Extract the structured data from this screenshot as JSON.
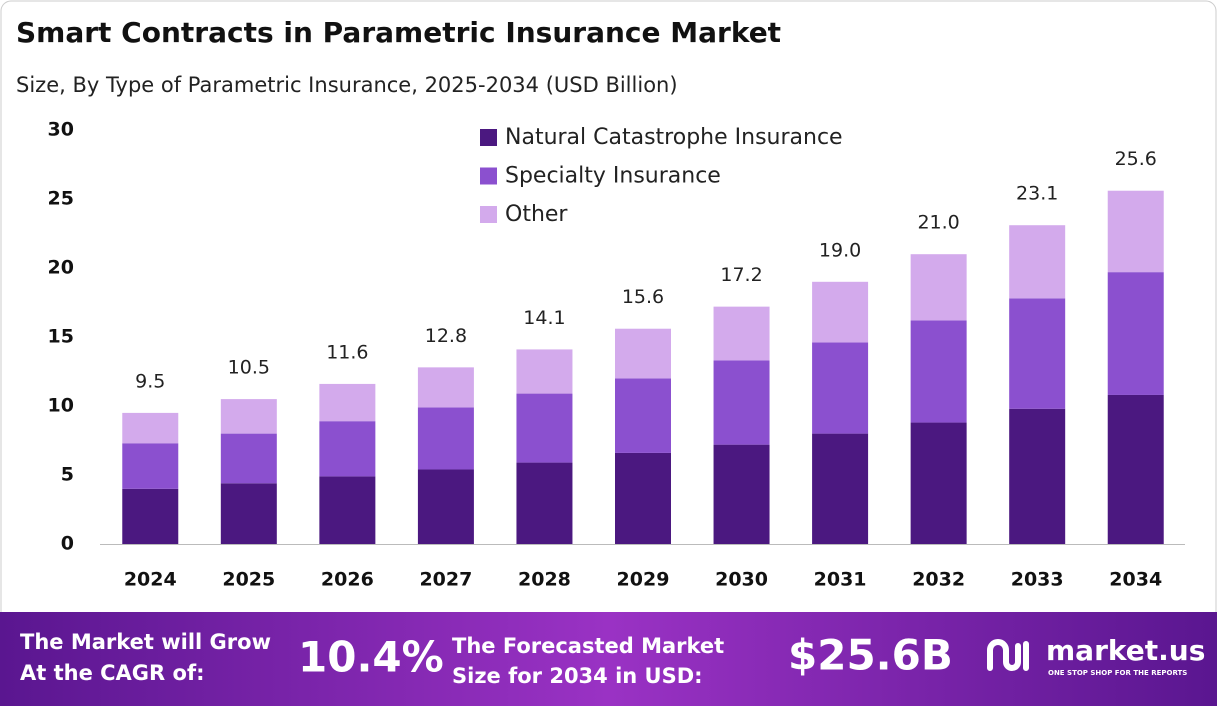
{
  "chart_data": {
    "type": "stacked_bar",
    "title": "Smart Contracts in Parametric Insurance Market",
    "subtitle": "Size, By Type of Parametric Insurance, 2025-2034 (USD Billion)",
    "categories": [
      "2024",
      "2025",
      "2026",
      "2027",
      "2028",
      "2029",
      "2030",
      "2031",
      "2032",
      "2033",
      "2034"
    ],
    "series": [
      {
        "name": "Natural Catastrophe Insurance",
        "color": "#4b1880",
        "values": [
          4.0,
          4.4,
          4.9,
          5.4,
          5.9,
          6.6,
          7.2,
          8.0,
          8.8,
          9.8,
          10.8
        ]
      },
      {
        "name": "Specialty Insurance",
        "color": "#8b50cf",
        "values": [
          3.3,
          3.6,
          4.0,
          4.5,
          5.0,
          5.4,
          6.1,
          6.6,
          7.4,
          8.0,
          8.9
        ]
      },
      {
        "name": "Other",
        "color": "#d3aaec",
        "values": [
          2.2,
          2.5,
          2.7,
          2.9,
          3.2,
          3.6,
          3.9,
          4.4,
          4.8,
          5.3,
          5.9
        ]
      }
    ],
    "totals": [
      9.5,
      10.5,
      11.6,
      12.8,
      14.1,
      15.6,
      17.2,
      19.0,
      21.0,
      23.1,
      25.6
    ],
    "total_labels": [
      "9.5",
      "10.5",
      "11.6",
      "12.8",
      "14.1",
      "15.6",
      "17.2",
      "19.0",
      "21.0",
      "23.1",
      "25.6"
    ],
    "ylim": [
      0,
      30
    ],
    "yticks": [
      0,
      5,
      10,
      15,
      20,
      25,
      30
    ],
    "grid": false,
    "legend": "top"
  },
  "footer": {
    "cagr_text": [
      "The Market will Grow",
      "At the CAGR of:"
    ],
    "cagr": "10.4%",
    "forecast_text": [
      "The Forecasted Market",
      "Size for 2034 in USD:"
    ],
    "forecast": "$25.6B",
    "brand": "market.us",
    "tagline": "ONE STOP SHOP FOR THE REPORTS"
  }
}
